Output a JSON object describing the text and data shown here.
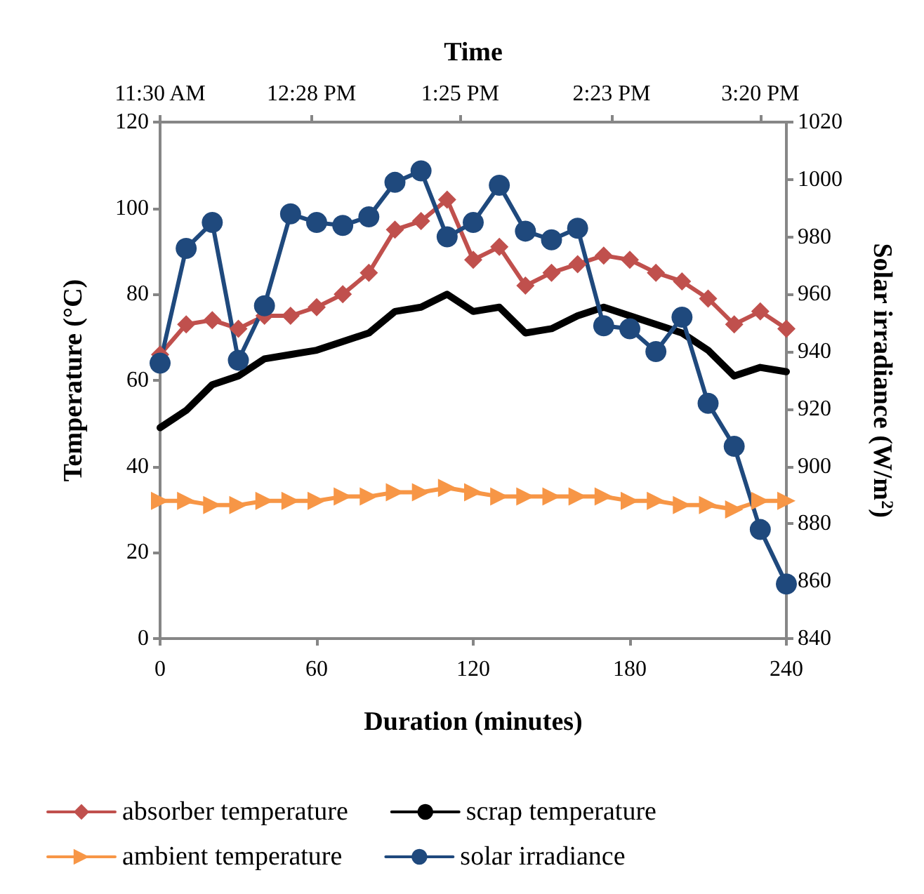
{
  "chart_data": {
    "type": "line",
    "x2label": "Time",
    "xlabel": "Duration (minutes)",
    "ylabel": "Temperature (°C)",
    "y2label": "Solar irradiance (W/m$^{2}$)",
    "x": [
      0,
      10,
      20,
      30,
      40,
      50,
      60,
      70,
      80,
      90,
      100,
      110,
      120,
      130,
      140,
      150,
      160,
      170,
      180,
      190,
      200,
      210,
      220,
      230,
      240
    ],
    "xlim": [
      0,
      240
    ],
    "xticks": [
      0,
      60,
      120,
      180,
      240
    ],
    "x2lim": [
      11.5,
      15.5
    ],
    "x2ticks": [
      {
        "value": 11.5,
        "label": "11:30 AM"
      },
      {
        "value": 12.4667,
        "label": "12:28 PM"
      },
      {
        "value": 13.4167,
        "label": "1:25 PM"
      },
      {
        "value": 14.3833,
        "label": "2:23 PM"
      },
      {
        "value": 15.3333,
        "label": "3:20 PM"
      }
    ],
    "ylim": [
      0,
      120
    ],
    "yticks": [
      0,
      20,
      40,
      60,
      80,
      100,
      120
    ],
    "y2lim": [
      840,
      1020
    ],
    "y2ticks": [
      840,
      860,
      880,
      900,
      920,
      940,
      960,
      980,
      1000,
      1020
    ],
    "grid": false,
    "legend": "bottom",
    "series": [
      {
        "name": "absorber temperature",
        "color": "#c0504d",
        "marker": "diamond",
        "values": [
          66,
          73,
          74,
          72,
          75,
          75,
          77,
          80,
          85,
          95,
          97,
          102,
          88,
          91,
          82,
          85,
          87,
          89,
          88,
          85,
          83,
          79,
          73,
          76,
          72
        ]
      },
      {
        "name": "scrap temperature",
        "color": "#000000",
        "marker": "none",
        "values": [
          49,
          53,
          59,
          61,
          65,
          66,
          67,
          69,
          71,
          76,
          77,
          80,
          76,
          77,
          71,
          72,
          75,
          77,
          75,
          73,
          71,
          67,
          61,
          63,
          62
        ]
      },
      {
        "name": "ambient temperature",
        "color": "#f79646",
        "marker": "triangle",
        "values": [
          32,
          32,
          31,
          31,
          32,
          32,
          32,
          33,
          33,
          34,
          34,
          35,
          34,
          33,
          33,
          33,
          33,
          33,
          32,
          32,
          31,
          31,
          30,
          32,
          32
        ]
      },
      {
        "name": "solar irradiance",
        "color": "#1f497d",
        "marker": "circle",
        "axis": "y2",
        "values": [
          936,
          976,
          985,
          937,
          956,
          988,
          985,
          984,
          987,
          999,
          1003,
          980,
          985,
          998,
          982,
          979,
          983,
          949,
          948,
          940,
          952,
          922,
          907,
          878,
          859
        ]
      }
    ]
  }
}
